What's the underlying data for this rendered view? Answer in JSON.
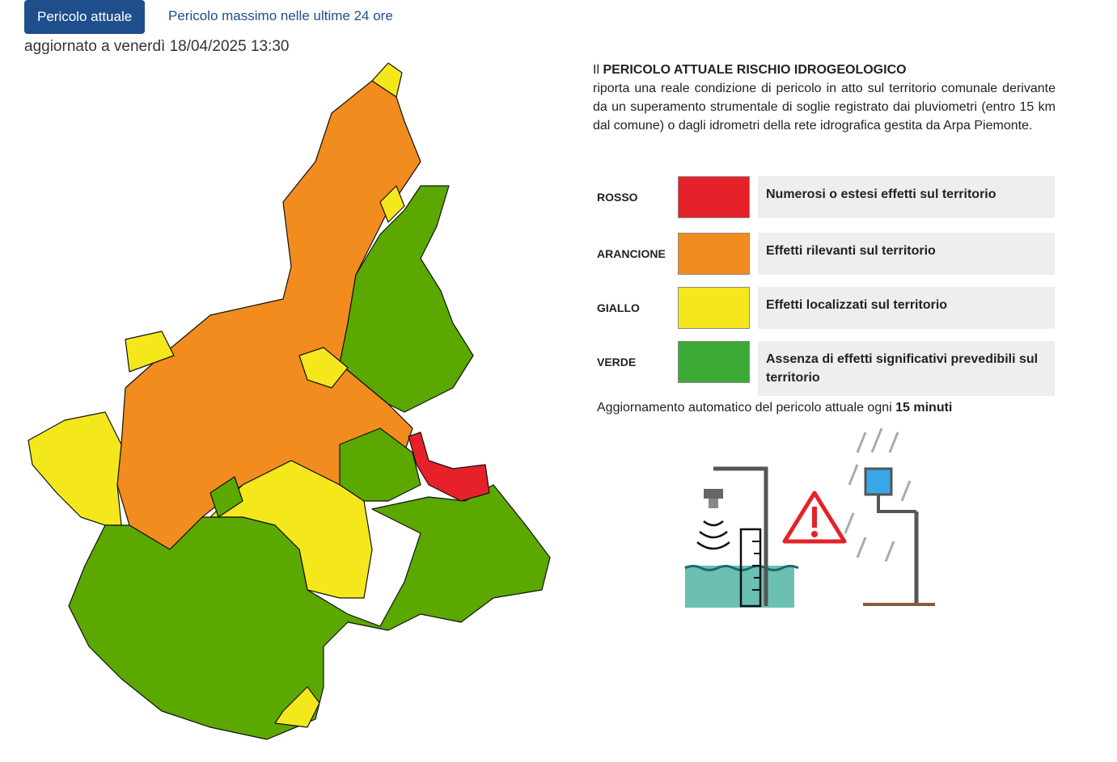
{
  "tabs": [
    "Pericolo attuale",
    "Pericolo massimo nelle ultime 24 ore"
  ],
  "updated": "aggiornato a venerdì 18/04/2025 13:30",
  "description": {
    "prefix": "Il",
    "title": "PERICOLO ATTUALE RISCHIO IDROGEOLOGICO",
    "text": "riporta una reale condizione di pericolo in atto sul territorio comunale derivante da un superamento strumentale di soglie registrato dai pluviometri (entro 15 km dal comune) o dagli idrometri della rete idrografica gestita da Arpa Piemonte."
  },
  "legend": [
    {
      "level": "ROSSO",
      "color": "#e62129",
      "description": "Numerosi o estesi effetti sul territorio"
    },
    {
      "level": "ARANCIONE",
      "color": "#f28c1e",
      "description": "Effetti rilevanti sul territorio"
    },
    {
      "level": "GIALLO",
      "color": "#f4e81c",
      "description": "Effetti localizzati sul territorio"
    },
    {
      "level": "VERDE",
      "color": "#3aaa35",
      "description": "Assenza di effetti significativi prevedibili sul territorio"
    }
  ],
  "footer": {
    "text": "Aggiornamento automatico  del pericolo attuale ogni",
    "emphasis": "15 minuti"
  }
}
